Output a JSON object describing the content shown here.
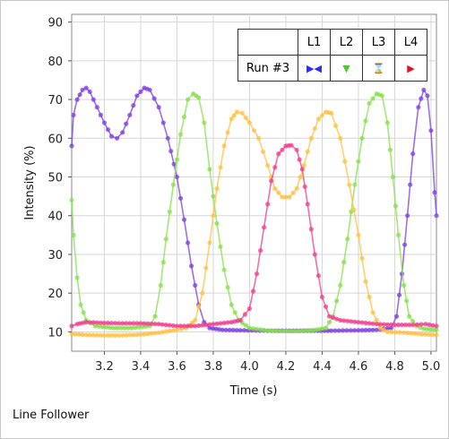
{
  "app": {
    "title": "Line Follower"
  },
  "legend": {
    "header_blank": "",
    "run_label": "Run #3"
  },
  "chart_data": {
    "type": "line",
    "xlabel": "Time (s)",
    "ylabel": "Intensity (%)",
    "xlim": [
      3.02,
      5.03
    ],
    "ylim": [
      5,
      92
    ],
    "xticks": [
      3.2,
      3.4,
      3.6,
      3.8,
      4.0,
      4.2,
      4.4,
      4.6,
      4.8,
      5.0
    ],
    "xtick_labels": [
      "3.2",
      "3.4",
      "3.6",
      "3.8",
      "4.0",
      "4.2",
      "4.4",
      "4.6",
      "4.8",
      "5.0"
    ],
    "yticks": [
      10,
      20,
      30,
      40,
      50,
      60,
      70,
      80,
      90
    ],
    "ytick_labels": [
      "10",
      "20",
      "30",
      "40",
      "50",
      "60",
      "70",
      "80",
      "90"
    ],
    "grid": true,
    "legend_position": "top-right",
    "series": [
      {
        "name": "L1",
        "color": "#7b3fe0",
        "marker": "bowtie",
        "marker_color": "#2d2df0",
        "points": [
          [
            3.02,
            58
          ],
          [
            3.03,
            66
          ],
          [
            3.05,
            70
          ],
          [
            3.08,
            72.5
          ],
          [
            3.1,
            73
          ],
          [
            3.12,
            72
          ],
          [
            3.16,
            68
          ],
          [
            3.2,
            64
          ],
          [
            3.24,
            60.5
          ],
          [
            3.27,
            60
          ],
          [
            3.3,
            61.5
          ],
          [
            3.34,
            66
          ],
          [
            3.38,
            71
          ],
          [
            3.42,
            73
          ],
          [
            3.45,
            72.5
          ],
          [
            3.5,
            68
          ],
          [
            3.55,
            60
          ],
          [
            3.6,
            50
          ],
          [
            3.64,
            39
          ],
          [
            3.68,
            27
          ],
          [
            3.72,
            17
          ],
          [
            3.75,
            12.5
          ],
          [
            3.78,
            11
          ],
          [
            3.85,
            10.5
          ],
          [
            3.95,
            10.4
          ],
          [
            4.1,
            10.3
          ],
          [
            4.2,
            10.3
          ],
          [
            4.3,
            10.3
          ],
          [
            4.45,
            10.3
          ],
          [
            4.6,
            10.4
          ],
          [
            4.7,
            10.5
          ],
          [
            4.78,
            11
          ],
          [
            4.81,
            14
          ],
          [
            4.84,
            25
          ],
          [
            4.87,
            40
          ],
          [
            4.9,
            56
          ],
          [
            4.93,
            68
          ],
          [
            4.96,
            72.5
          ],
          [
            4.98,
            71
          ],
          [
            5.0,
            62
          ],
          [
            5.02,
            46
          ],
          [
            5.03,
            40
          ]
        ]
      },
      {
        "name": "L2",
        "color": "#86e04a",
        "marker": "triangle-down",
        "marker_color": "#4ec82a",
        "points": [
          [
            3.02,
            44
          ],
          [
            3.03,
            35
          ],
          [
            3.05,
            24
          ],
          [
            3.07,
            17
          ],
          [
            3.1,
            13
          ],
          [
            3.15,
            11.5
          ],
          [
            3.25,
            11
          ],
          [
            3.35,
            11
          ],
          [
            3.45,
            11.5
          ],
          [
            3.48,
            14
          ],
          [
            3.51,
            22
          ],
          [
            3.54,
            34
          ],
          [
            3.58,
            48
          ],
          [
            3.62,
            61
          ],
          [
            3.66,
            70
          ],
          [
            3.69,
            71.5
          ],
          [
            3.72,
            70.5
          ],
          [
            3.75,
            64
          ],
          [
            3.78,
            52
          ],
          [
            3.82,
            38
          ],
          [
            3.86,
            26
          ],
          [
            3.9,
            17
          ],
          [
            3.94,
            13
          ],
          [
            4.0,
            11
          ],
          [
            4.1,
            10.3
          ],
          [
            4.25,
            10.2
          ],
          [
            4.35,
            10.4
          ],
          [
            4.42,
            11
          ],
          [
            4.46,
            14
          ],
          [
            4.5,
            22
          ],
          [
            4.54,
            34
          ],
          [
            4.58,
            48
          ],
          [
            4.62,
            60
          ],
          [
            4.66,
            69
          ],
          [
            4.7,
            71.5
          ],
          [
            4.73,
            71
          ],
          [
            4.76,
            64
          ],
          [
            4.79,
            50
          ],
          [
            4.82,
            35
          ],
          [
            4.85,
            22
          ],
          [
            4.88,
            14
          ],
          [
            4.92,
            11.5
          ],
          [
            4.96,
            10.8
          ],
          [
            5.03,
            10.5
          ]
        ]
      },
      {
        "name": "L3",
        "color": "#ffc040",
        "marker": "hourglass",
        "marker_color": "#f0a800",
        "points": [
          [
            3.02,
            9.5
          ],
          [
            3.1,
            9.2
          ],
          [
            3.2,
            9.1
          ],
          [
            3.3,
            9.1
          ],
          [
            3.4,
            9.3
          ],
          [
            3.5,
            9.8
          ],
          [
            3.6,
            10.5
          ],
          [
            3.65,
            11
          ],
          [
            3.7,
            13
          ],
          [
            3.74,
            20
          ],
          [
            3.78,
            33
          ],
          [
            3.82,
            47
          ],
          [
            3.86,
            58
          ],
          [
            3.9,
            65
          ],
          [
            3.93,
            66.8
          ],
          [
            3.96,
            66.5
          ],
          [
            4.0,
            64
          ],
          [
            4.05,
            60
          ],
          [
            4.1,
            53
          ],
          [
            4.14,
            47
          ],
          [
            4.18,
            44.8
          ],
          [
            4.22,
            44.8
          ],
          [
            4.26,
            47
          ],
          [
            4.3,
            53
          ],
          [
            4.34,
            60
          ],
          [
            4.38,
            65
          ],
          [
            4.42,
            66.8
          ],
          [
            4.45,
            66.5
          ],
          [
            4.5,
            60
          ],
          [
            4.55,
            48
          ],
          [
            4.6,
            35
          ],
          [
            4.64,
            23
          ],
          [
            4.68,
            15
          ],
          [
            4.72,
            11
          ],
          [
            4.76,
            10
          ],
          [
            4.85,
            9.8
          ],
          [
            4.95,
            9.4
          ],
          [
            5.03,
            9.2
          ]
        ]
      },
      {
        "name": "L4",
        "color": "#f03c8c",
        "marker": "triangle-right",
        "marker_color": "#e01020",
        "points": [
          [
            3.02,
            11.5
          ],
          [
            3.05,
            12
          ],
          [
            3.1,
            12.5
          ],
          [
            3.2,
            12.3
          ],
          [
            3.3,
            12.2
          ],
          [
            3.4,
            12.2
          ],
          [
            3.5,
            12
          ],
          [
            3.6,
            11.5
          ],
          [
            3.7,
            11.5
          ],
          [
            3.8,
            12
          ],
          [
            3.9,
            12.5
          ],
          [
            3.95,
            13
          ],
          [
            4.0,
            16
          ],
          [
            4.04,
            25
          ],
          [
            4.08,
            37
          ],
          [
            4.12,
            49
          ],
          [
            4.16,
            56
          ],
          [
            4.2,
            58
          ],
          [
            4.23,
            58.2
          ],
          [
            4.26,
            57
          ],
          [
            4.29,
            52
          ],
          [
            4.32,
            43
          ],
          [
            4.36,
            30
          ],
          [
            4.4,
            19
          ],
          [
            4.44,
            14
          ],
          [
            4.5,
            13
          ],
          [
            4.6,
            12.5
          ],
          [
            4.7,
            12
          ],
          [
            4.8,
            11.8
          ],
          [
            4.9,
            11.8
          ],
          [
            4.97,
            12
          ],
          [
            5.03,
            11.5
          ]
        ]
      }
    ]
  }
}
